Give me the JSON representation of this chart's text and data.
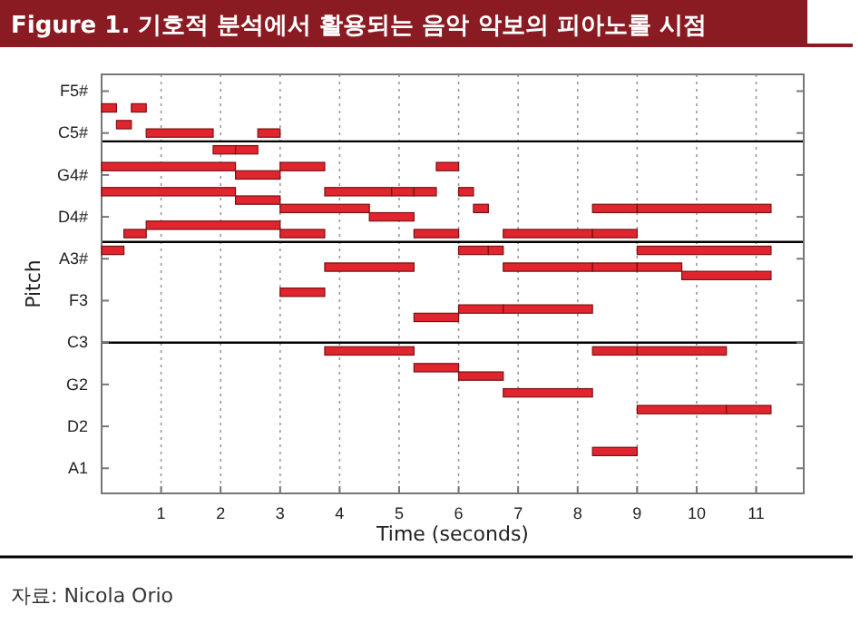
{
  "chart_data": {
    "type": "bar",
    "orientation": "horizontal",
    "title": "Figure 1. 기호적 분석에서 활용되는 음악 악보의 피아노롤 시점",
    "xlabel": "Time (seconds)",
    "ylabel": "Pitch",
    "annotations": [
      "자료: Nicola Orio"
    ],
    "categories": [
      null,
      null,
      "F5#",
      null,
      null,
      null,
      null,
      "C5#",
      null,
      null,
      null,
      null,
      "G4#",
      null,
      null,
      null,
      null,
      "D4#",
      null,
      null,
      null,
      null,
      "A3#",
      null,
      null,
      null,
      null,
      "F3",
      null,
      null,
      null,
      null,
      "C3",
      null,
      null,
      null,
      null,
      "G2",
      null,
      null,
      null,
      null,
      "D2",
      null,
      null,
      null,
      null,
      "A1",
      null,
      null,
      null
    ],
    "xlim": [
      0,
      11.8
    ],
    "xticks": [
      1,
      2,
      3,
      4,
      5,
      6,
      7,
      8,
      9,
      10,
      11
    ],
    "grid": "x",
    "series": [
      {
        "color": "#e0252f",
        "base": [
          null,
          null,
          null,
          null,
          0,
          null,
          0.25,
          0.75,
          null,
          1.875,
          null,
          0,
          2.25,
          null,
          0,
          2.25,
          3,
          4.5,
          0.75,
          0.375,
          null,
          0,
          null,
          3.75,
          9.75,
          null,
          3,
          null,
          6,
          5.25,
          null,
          null,
          null,
          3.75,
          null,
          5.25,
          6,
          null,
          6.75,
          null,
          9,
          null,
          null,
          null,
          null,
          8.25,
          null,
          null,
          null,
          null,
          null
        ],
        "values": [
          null,
          null,
          null,
          null,
          0.25,
          null,
          0.25,
          1.125,
          null,
          0.375,
          null,
          2.25,
          0.75,
          null,
          2.25,
          0.75,
          1.5,
          0.75,
          2.25,
          0.375,
          null,
          0.375,
          null,
          1.5,
          1.5,
          null,
          0.75,
          null,
          0.75,
          0.75,
          null,
          null,
          null,
          1.5,
          null,
          0.75,
          0.75,
          null,
          1.5,
          null,
          1.5,
          null,
          null,
          null,
          null,
          0.75,
          null,
          null,
          null,
          null,
          null
        ]
      },
      {
        "color": "#e0252f",
        "base": [
          null,
          null,
          null,
          null,
          0.5,
          null,
          null,
          2.625,
          null,
          2.25,
          null,
          3,
          null,
          null,
          3.75,
          null,
          6.25,
          null,
          null,
          3,
          null,
          6,
          null,
          6.75,
          null,
          null,
          null,
          null,
          6.75,
          null,
          null,
          null,
          null,
          8.25,
          null,
          null,
          null,
          null,
          null,
          null,
          10.5,
          null,
          null,
          null,
          null,
          null,
          null,
          null,
          null,
          null,
          null
        ],
        "values": [
          null,
          null,
          null,
          null,
          0.25,
          null,
          null,
          0.375,
          null,
          0.375,
          null,
          0.75,
          null,
          null,
          1.125,
          null,
          0.25,
          null,
          null,
          0.75,
          null,
          0.5,
          null,
          1.5,
          null,
          null,
          null,
          null,
          1.5,
          null,
          null,
          null,
          null,
          0.75,
          null,
          null,
          null,
          null,
          null,
          null,
          0.75,
          null,
          null,
          null,
          null,
          null,
          null,
          null,
          null,
          null,
          null
        ]
      },
      {
        "color": "#e0252f",
        "base": [
          null,
          null,
          null,
          null,
          null,
          null,
          null,
          null,
          null,
          null,
          null,
          5.625,
          null,
          null,
          4.875,
          null,
          8.25,
          null,
          null,
          5.25,
          null,
          6.5,
          null,
          8.25,
          null,
          null,
          null,
          null,
          null,
          null,
          null,
          null,
          null,
          9,
          null,
          null,
          null,
          null,
          null,
          null,
          null,
          null,
          null,
          null,
          null,
          null,
          null,
          null,
          null,
          null,
          null
        ],
        "values": [
          null,
          null,
          null,
          null,
          null,
          null,
          null,
          null,
          null,
          null,
          null,
          0.375,
          null,
          null,
          0.375,
          null,
          0.75,
          null,
          null,
          0.75,
          null,
          0.25,
          null,
          0.75,
          null,
          null,
          null,
          null,
          null,
          null,
          null,
          null,
          null,
          1.5,
          null,
          null,
          null,
          null,
          null,
          null,
          null,
          null,
          null,
          null,
          null,
          null,
          null,
          null,
          null,
          null,
          null
        ]
      },
      {
        "color": "#e0252f",
        "base": [
          null,
          null,
          null,
          null,
          null,
          null,
          null,
          null,
          null,
          null,
          null,
          null,
          null,
          null,
          5.25,
          null,
          9,
          null,
          null,
          6.75,
          null,
          9,
          null,
          9,
          null,
          null,
          null,
          null,
          null,
          null,
          null,
          null,
          null,
          null,
          null,
          null,
          null,
          null,
          null,
          null,
          null,
          null,
          null,
          null,
          null,
          null,
          null,
          null,
          null,
          null,
          null
        ],
        "values": [
          null,
          null,
          null,
          null,
          null,
          null,
          null,
          null,
          null,
          null,
          null,
          null,
          null,
          null,
          0.375,
          null,
          2.25,
          null,
          null,
          1.5,
          null,
          2.25,
          null,
          0.75,
          null,
          null,
          null,
          null,
          null,
          null,
          null,
          null,
          null,
          null,
          null,
          null,
          null,
          null,
          null,
          null,
          null,
          null,
          null,
          null,
          null,
          null,
          null,
          null,
          null,
          null,
          null
        ]
      },
      {
        "color": "#e0252f",
        "base": [
          null,
          null,
          null,
          null,
          null,
          null,
          null,
          null,
          null,
          null,
          null,
          null,
          null,
          null,
          6,
          null,
          null,
          null,
          null,
          8.25,
          null,
          null,
          null,
          null,
          null,
          null,
          null,
          null,
          null,
          null,
          null,
          null,
          null,
          null,
          null,
          null,
          null,
          null,
          null,
          null,
          null,
          null,
          null,
          null,
          null,
          null,
          null,
          null,
          null,
          null,
          null
        ],
        "values": [
          null,
          null,
          null,
          null,
          null,
          null,
          null,
          null,
          null,
          null,
          null,
          null,
          null,
          null,
          0.25,
          null,
          null,
          null,
          null,
          0.75,
          null,
          null,
          null,
          null,
          null,
          null,
          null,
          null,
          null,
          null,
          null,
          null,
          null,
          null,
          null,
          null,
          null,
          null,
          null,
          null,
          null,
          null,
          null,
          null,
          null,
          null,
          null,
          null,
          null,
          null,
          null
        ]
      }
    ]
  }
}
